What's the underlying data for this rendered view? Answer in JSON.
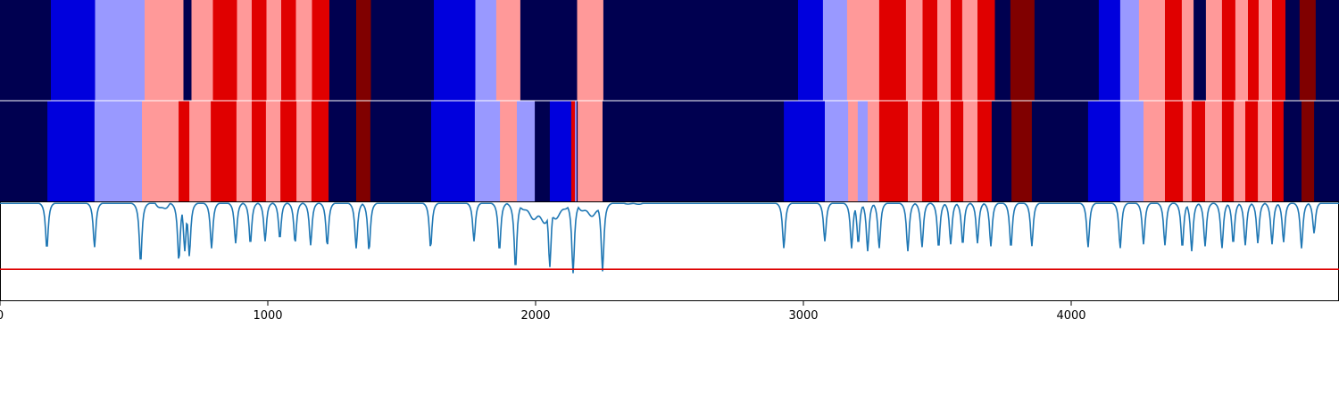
{
  "chart_data": [
    {
      "type": "heatmap",
      "xlim": [
        0,
        5000
      ],
      "palette": {
        "0": "#000050",
        "1": "#0000dd",
        "2": "#9999ff",
        "3": "#ff9999",
        "4": "#e00000",
        "5": "#800000"
      },
      "segments": [
        [
          0,
          0,
          190
        ],
        [
          1,
          190,
          355
        ],
        [
          2,
          355,
          540
        ],
        [
          3,
          540,
          685
        ],
        [
          0,
          685,
          715
        ],
        [
          3,
          715,
          795
        ],
        [
          4,
          795,
          885
        ],
        [
          3,
          885,
          940
        ],
        [
          4,
          940,
          995
        ],
        [
          3,
          995,
          1050
        ],
        [
          4,
          1050,
          1105
        ],
        [
          3,
          1105,
          1165
        ],
        [
          4,
          1165,
          1230
        ],
        [
          0,
          1230,
          1330
        ],
        [
          5,
          1330,
          1385
        ],
        [
          0,
          1385,
          1620
        ],
        [
          1,
          1620,
          1775
        ],
        [
          2,
          1775,
          1853
        ],
        [
          3,
          1853,
          1943
        ],
        [
          0,
          1943,
          2155
        ],
        [
          3,
          2155,
          2253
        ],
        [
          0,
          2253,
          2980
        ],
        [
          1,
          2980,
          3073
        ],
        [
          2,
          3073,
          3163
        ],
        [
          3,
          3163,
          3283
        ],
        [
          4,
          3283,
          3383
        ],
        [
          3,
          3383,
          3445
        ],
        [
          4,
          3445,
          3500
        ],
        [
          3,
          3500,
          3550
        ],
        [
          4,
          3550,
          3593
        ],
        [
          3,
          3593,
          3650
        ],
        [
          4,
          3650,
          3715
        ],
        [
          0,
          3715,
          3773
        ],
        [
          5,
          3773,
          3863
        ],
        [
          0,
          3863,
          4103
        ],
        [
          1,
          4103,
          4183
        ],
        [
          2,
          4183,
          4253
        ],
        [
          3,
          4253,
          4350
        ],
        [
          4,
          4350,
          4413
        ],
        [
          3,
          4413,
          4457
        ],
        [
          0,
          4457,
          4503
        ],
        [
          3,
          4503,
          4563
        ],
        [
          4,
          4563,
          4613
        ],
        [
          3,
          4613,
          4660
        ],
        [
          4,
          4660,
          4700
        ],
        [
          3,
          4700,
          4750
        ],
        [
          4,
          4750,
          4800
        ],
        [
          0,
          4800,
          4853
        ],
        [
          5,
          4853,
          4913
        ],
        [
          0,
          4913,
          5000
        ]
      ]
    },
    {
      "type": "heatmap",
      "xlim": [
        0,
        5000
      ],
      "segments": [
        [
          0,
          0,
          177
        ],
        [
          1,
          177,
          353
        ],
        [
          2,
          353,
          530
        ],
        [
          3,
          530,
          667
        ],
        [
          4,
          667,
          707
        ],
        [
          3,
          707,
          787
        ],
        [
          4,
          787,
          883
        ],
        [
          3,
          883,
          940
        ],
        [
          4,
          940,
          993
        ],
        [
          3,
          993,
          1047
        ],
        [
          4,
          1047,
          1107
        ],
        [
          3,
          1107,
          1163
        ],
        [
          4,
          1163,
          1227
        ],
        [
          0,
          1227,
          1330
        ],
        [
          5,
          1330,
          1383
        ],
        [
          0,
          1383,
          1610
        ],
        [
          1,
          1610,
          1773
        ],
        [
          2,
          1773,
          1867
        ],
        [
          3,
          1867,
          1930
        ],
        [
          2,
          1930,
          1997
        ],
        [
          0,
          1997,
          2053
        ],
        [
          1,
          2053,
          2133
        ],
        [
          4,
          2133,
          2147
        ],
        [
          2,
          2147,
          2153
        ],
        [
          0,
          2153,
          2157
        ],
        [
          3,
          2157,
          2250
        ],
        [
          0,
          2250,
          2927
        ],
        [
          1,
          2927,
          3080
        ],
        [
          2,
          3080,
          3167
        ],
        [
          3,
          3167,
          3203
        ],
        [
          2,
          3203,
          3240
        ],
        [
          3,
          3240,
          3283
        ],
        [
          4,
          3283,
          3390
        ],
        [
          3,
          3390,
          3443
        ],
        [
          4,
          3443,
          3507
        ],
        [
          3,
          3507,
          3550
        ],
        [
          4,
          3550,
          3597
        ],
        [
          3,
          3597,
          3650
        ],
        [
          4,
          3650,
          3703
        ],
        [
          0,
          3703,
          3777
        ],
        [
          5,
          3777,
          3853
        ],
        [
          0,
          3853,
          4063
        ],
        [
          1,
          4063,
          4183
        ],
        [
          2,
          4183,
          4270
        ],
        [
          3,
          4270,
          4350
        ],
        [
          4,
          4350,
          4417
        ],
        [
          3,
          4417,
          4450
        ],
        [
          4,
          4450,
          4500
        ],
        [
          3,
          4500,
          4563
        ],
        [
          4,
          4563,
          4607
        ],
        [
          3,
          4607,
          4650
        ],
        [
          4,
          4650,
          4697
        ],
        [
          3,
          4697,
          4750
        ],
        [
          4,
          4750,
          4793
        ],
        [
          0,
          4793,
          4860
        ],
        [
          5,
          4860,
          4907
        ],
        [
          0,
          4907,
          5000
        ]
      ]
    },
    {
      "type": "line",
      "xlim": [
        0,
        5000
      ],
      "ylim": [
        -1.0,
        0.0
      ],
      "threshold": -0.68,
      "threshold_color": "#dd0000",
      "line_color": "#1f77b4",
      "baseline": -0.02,
      "dips": [
        [
          175,
          -0.48
        ],
        [
          353,
          -0.46
        ],
        [
          525,
          -0.62
        ],
        [
          668,
          -0.6
        ],
        [
          690,
          -0.5
        ],
        [
          707,
          -0.55
        ],
        [
          790,
          -0.47
        ],
        [
          880,
          -0.42
        ],
        [
          935,
          -0.43
        ],
        [
          990,
          -0.4
        ],
        [
          1045,
          -0.38
        ],
        [
          1102,
          -0.42
        ],
        [
          1160,
          -0.44
        ],
        [
          1222,
          -0.45
        ],
        [
          1330,
          -0.47
        ],
        [
          1378,
          -0.5
        ],
        [
          1608,
          -0.47
        ],
        [
          1770,
          -0.4
        ],
        [
          1865,
          -0.5
        ],
        [
          1925,
          -0.68
        ],
        [
          2053,
          -0.66
        ],
        [
          2140,
          -0.72
        ],
        [
          2250,
          -0.7
        ],
        [
          2927,
          -0.47
        ],
        [
          3080,
          -0.4
        ],
        [
          3180,
          -0.47
        ],
        [
          3205,
          -0.43
        ],
        [
          3240,
          -0.5
        ],
        [
          3283,
          -0.47
        ],
        [
          3390,
          -0.5
        ],
        [
          3443,
          -0.46
        ],
        [
          3505,
          -0.47
        ],
        [
          3550,
          -0.43
        ],
        [
          3595,
          -0.44
        ],
        [
          3650,
          -0.42
        ],
        [
          3700,
          -0.45
        ],
        [
          3775,
          -0.47
        ],
        [
          3853,
          -0.45
        ],
        [
          4063,
          -0.46
        ],
        [
          4183,
          -0.47
        ],
        [
          4270,
          -0.43
        ],
        [
          4350,
          -0.44
        ],
        [
          4415,
          -0.47
        ],
        [
          4450,
          -0.5
        ],
        [
          4500,
          -0.45
        ],
        [
          4563,
          -0.47
        ],
        [
          4605,
          -0.43
        ],
        [
          4650,
          -0.44
        ],
        [
          4697,
          -0.42
        ],
        [
          4750,
          -0.43
        ],
        [
          4793,
          -0.41
        ],
        [
          4860,
          -0.47
        ],
        [
          4907,
          -0.32
        ]
      ],
      "bumps": [
        [
          575,
          640,
          -0.09
        ],
        [
          1925,
          2140,
          -0.22
        ],
        [
          2140,
          2280,
          -0.15
        ],
        [
          2280,
          2460,
          -0.03
        ]
      ],
      "xticks": [
        0,
        1000,
        2000,
        3000,
        4000
      ],
      "xtick_labels": [
        "0",
        "1000",
        "2000",
        "3000",
        "4000"
      ]
    }
  ]
}
